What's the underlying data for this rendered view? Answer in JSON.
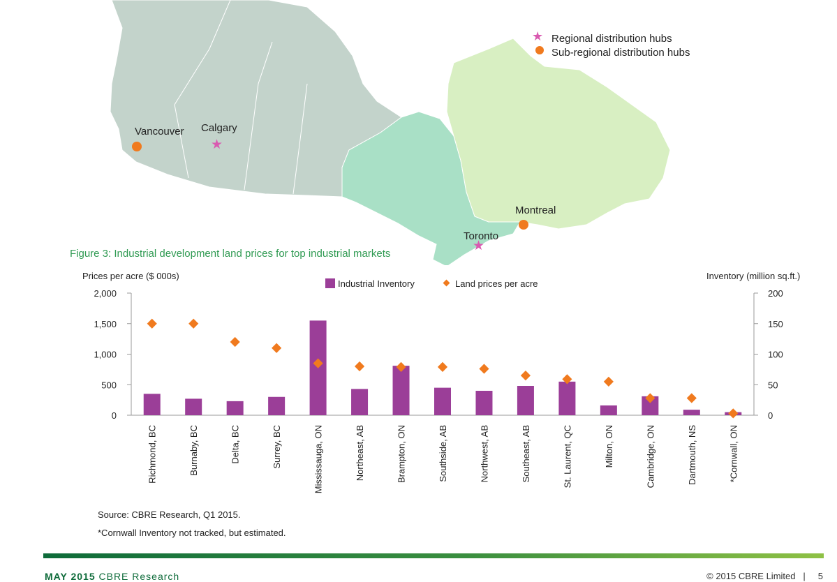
{
  "map": {
    "legend": {
      "regional_label": "Regional distribution hubs",
      "subregional_label": "Sub-regional distribution hubs"
    },
    "cities": {
      "vancouver": "Vancouver",
      "calgary": "Calgary",
      "montreal": "Montreal",
      "toronto": "Toronto"
    },
    "colors": {
      "west": "#c3d3cb",
      "ontario": "#a9e0c6",
      "quebec": "#d8efc2",
      "hub_regional": "#d95ab0",
      "hub_sub": "#f07a1e"
    }
  },
  "figure": {
    "title": "Figure 3: Industrial development land prices for top industrial markets",
    "left_axis_title": "Prices per acre ($ 000s)",
    "right_axis_title": "Inventory (million sq.ft.)",
    "legend_inventory": "Industrial Inventory",
    "legend_land": "Land prices per acre"
  },
  "chart_data": {
    "type": "bar",
    "title": "Figure 3: Industrial development land prices for top industrial markets",
    "categories": [
      "Richmond, BC",
      "Burnaby, BC",
      "Delta, BC",
      "Surrey, BC",
      "Mississauga, ON",
      "Northeast, AB",
      "Brampton, ON",
      "Southside, AB",
      "Northwest, AB",
      "Southeast, AB",
      "St. Laurent, QC",
      "Milton, ON",
      "Cambridge, ON",
      "Dartmouth, NS",
      "*Cornwall, ON"
    ],
    "series": [
      {
        "name": "Industrial Inventory",
        "type": "bar",
        "axis": "right",
        "color": "#9b3e98",
        "values": [
          35,
          27,
          23,
          30,
          155,
          43,
          81,
          45,
          40,
          48,
          55,
          16,
          31,
          9,
          5
        ]
      },
      {
        "name": "Land prices per acre",
        "type": "scatter",
        "axis": "left",
        "color": "#f07a1e",
        "values": [
          1500,
          1500,
          1200,
          1100,
          850,
          800,
          790,
          790,
          760,
          650,
          590,
          550,
          280,
          280,
          30
        ]
      }
    ],
    "left_axis": {
      "label": "Prices per acre ($ 000s)",
      "range": [
        0,
        2000
      ],
      "ticks": [
        "0",
        "500",
        "1,000",
        "1,500",
        "2,000"
      ],
      "tick_values": [
        0,
        500,
        1000,
        1500,
        2000
      ]
    },
    "right_axis": {
      "label": "Inventory (million sq.ft.)",
      "range": [
        0,
        200
      ],
      "ticks": [
        "0",
        "50",
        "100",
        "150",
        "200"
      ],
      "tick_values": [
        0,
        50,
        100,
        150,
        200
      ]
    },
    "legend_position": "top-center"
  },
  "source": {
    "line1": "Source: CBRE Research, Q1 2015.",
    "line2": "*Cornwall Inventory not tracked, but estimated."
  },
  "footer": {
    "date": "MAY 2015",
    "brand": "CBRE Research",
    "copyright": "© 2015 CBRE Limited",
    "page": "5"
  }
}
